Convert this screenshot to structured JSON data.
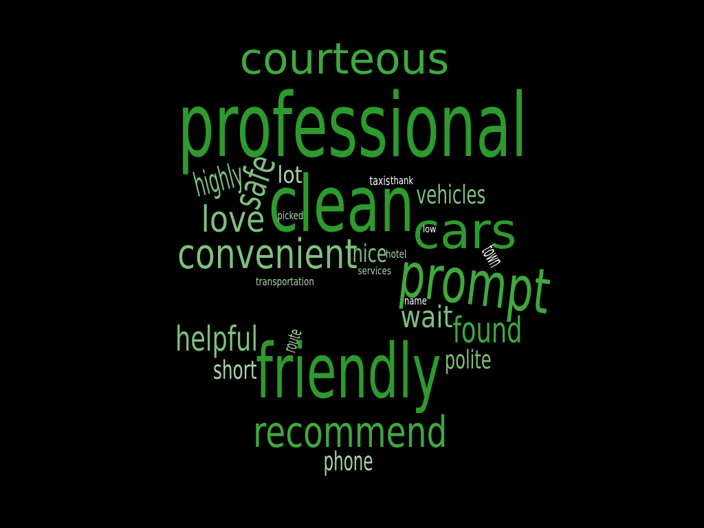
{
  "cloud": {
    "background": "#000000",
    "colors": {
      "dark_green": "#2e9a2e",
      "mid_green": "#3fa83f",
      "light_green": "#7fbf7f",
      "pale_green": "#a9d3a9",
      "white": "#ffffff"
    },
    "words": [
      {
        "key": "courteous",
        "text": "courteous",
        "color": "mid_green",
        "weight": 0.55
      },
      {
        "key": "professional",
        "text": "professional",
        "color": "dark_green",
        "weight": 1.0
      },
      {
        "key": "highly",
        "text": "highly",
        "color": "light_green",
        "weight": 0.3
      },
      {
        "key": "safe",
        "text": "safe",
        "color": "light_green",
        "weight": 0.4
      },
      {
        "key": "lot",
        "text": "lot",
        "color": "pale_green",
        "weight": 0.25
      },
      {
        "key": "clean",
        "text": "clean",
        "color": "dark_green",
        "weight": 1.0
      },
      {
        "key": "taxis",
        "text": "taxis",
        "color": "white",
        "weight": 0.1
      },
      {
        "key": "thank",
        "text": "thank",
        "color": "white",
        "weight": 0.1
      },
      {
        "key": "vehicles",
        "text": "vehicles",
        "color": "light_green",
        "weight": 0.25
      },
      {
        "key": "love",
        "text": "love",
        "color": "light_green",
        "weight": 0.5
      },
      {
        "key": "picked",
        "text": "picked",
        "color": "pale_green",
        "weight": 0.1
      },
      {
        "key": "cars",
        "text": "cars",
        "color": "dark_green",
        "weight": 0.75
      },
      {
        "key": "low",
        "text": "low",
        "color": "white",
        "weight": 0.1
      },
      {
        "key": "convenient",
        "text": "convenient",
        "color": "light_green",
        "weight": 0.6
      },
      {
        "key": "nice",
        "text": "nice",
        "color": "light_green",
        "weight": 0.25
      },
      {
        "key": "hotel",
        "text": "hotel",
        "color": "pale_green",
        "weight": 0.1
      },
      {
        "key": "town",
        "text": "town",
        "color": "white",
        "weight": 0.1
      },
      {
        "key": "services",
        "text": "services",
        "color": "pale_green",
        "weight": 0.1
      },
      {
        "key": "prompt",
        "text": "prompt",
        "color": "mid_green",
        "weight": 0.7
      },
      {
        "key": "transportation",
        "text": "transportation",
        "color": "pale_green",
        "weight": 0.1
      },
      {
        "key": "name",
        "text": "name",
        "color": "white",
        "weight": 0.1
      },
      {
        "key": "wait",
        "text": "wait",
        "color": "light_green",
        "weight": 0.4
      },
      {
        "key": "found",
        "text": "found",
        "color": "mid_green",
        "weight": 0.45
      },
      {
        "key": "helpful",
        "text": "helpful",
        "color": "light_green",
        "weight": 0.45
      },
      {
        "key": "route",
        "text": "route",
        "color": "pale_green",
        "weight": 0.1
      },
      {
        "key": "polite",
        "text": "polite",
        "color": "light_green",
        "weight": 0.3
      },
      {
        "key": "short",
        "text": "short",
        "color": "pale_green",
        "weight": 0.3
      },
      {
        "key": "friendly",
        "text": "friendly",
        "color": "dark_green",
        "weight": 0.95
      },
      {
        "key": "recommend",
        "text": "recommend",
        "color": "mid_green",
        "weight": 0.6
      },
      {
        "key": "phone",
        "text": "phone",
        "color": "pale_green",
        "weight": 0.3
      }
    ]
  }
}
